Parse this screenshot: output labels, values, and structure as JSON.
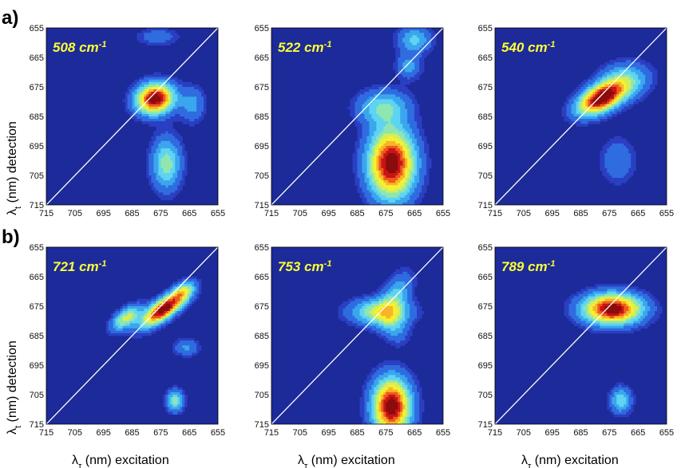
{
  "panel_labels": [
    "a)",
    "b)"
  ],
  "colors": {
    "background": "#1c2a9a",
    "levels": [
      "#2a3fc2",
      "#2f6ce0",
      "#3aa6ee",
      "#5fd4f2",
      "#8fe6b0",
      "#d4ee5a",
      "#f6f22e",
      "#f8b428",
      "#ee5a1e",
      "#c81414",
      "#8a0c0c"
    ],
    "diagonal": "#ffffff",
    "label_text": "#ffff33"
  },
  "axis": {
    "ticks": [
      715,
      705,
      695,
      685,
      675,
      665,
      655
    ],
    "y_ticks": [
      655,
      665,
      675,
      685,
      695,
      705,
      715
    ],
    "x_label": "λτ (nm) excitation",
    "x_label_main": "λ",
    "x_label_sub": "τ",
    "x_label_rest": " (nm) excitation",
    "y_label": "λt (nm) detection",
    "y_label_main": "λ",
    "y_label_sub": "t",
    "y_label_rest": " (nm) detection"
  },
  "chart_data": [
    {
      "type": "heatmap",
      "row": "a",
      "label": "508 cm⁻¹",
      "label_main": "508 cm",
      "label_sup": "-1",
      "xlabel": "",
      "ylabel": "λt (nm) detection",
      "xlim": [
        715,
        655
      ],
      "ylim": [
        655,
        715
      ],
      "peaks": [
        {
          "x": 677,
          "y": 679,
          "amplitude": 1.0,
          "sx": 4.5,
          "sy": 3.5,
          "rot": 10
        },
        {
          "x": 673,
          "y": 701,
          "amplitude": 0.42,
          "sx": 3.5,
          "sy": 6,
          "rot": 0
        },
        {
          "x": 664,
          "y": 681,
          "amplitude": 0.22,
          "sx": 3,
          "sy": 4,
          "rot": 0
        },
        {
          "x": 676,
          "y": 658,
          "amplitude": 0.15,
          "sx": 5,
          "sy": 2,
          "rot": 0
        }
      ]
    },
    {
      "type": "heatmap",
      "row": "a",
      "label": "522 cm⁻¹",
      "label_main": "522 cm",
      "label_sup": "-1",
      "xlabel": "",
      "ylabel": "",
      "xlim": [
        715,
        655
      ],
      "ylim": [
        655,
        715
      ],
      "peaks": [
        {
          "x": 673,
          "y": 701,
          "amplitude": 1.0,
          "sx": 5.5,
          "sy": 8,
          "rot": 0
        },
        {
          "x": 676,
          "y": 682,
          "amplitude": 0.35,
          "sx": 6,
          "sy": 4,
          "rot": 0
        },
        {
          "x": 665,
          "y": 659,
          "amplitude": 0.3,
          "sx": 4,
          "sy": 3,
          "rot": 0
        },
        {
          "x": 667,
          "y": 668,
          "amplitude": 0.22,
          "sx": 3,
          "sy": 3,
          "rot": 0
        }
      ]
    },
    {
      "type": "heatmap",
      "row": "a",
      "label": "540 cm⁻¹",
      "label_main": "540 cm",
      "label_sup": "-1",
      "xlabel": "",
      "ylabel": "",
      "xlim": [
        715,
        655
      ],
      "ylim": [
        655,
        715
      ],
      "peaks": [
        {
          "x": 678,
          "y": 679,
          "amplitude": 1.0,
          "sx": 6,
          "sy": 3,
          "rot": 25
        },
        {
          "x": 670,
          "y": 673,
          "amplitude": 0.35,
          "sx": 6,
          "sy": 4,
          "rot": 10
        },
        {
          "x": 672,
          "y": 700,
          "amplitude": 0.18,
          "sx": 4,
          "sy": 5,
          "rot": 0
        }
      ]
    },
    {
      "type": "heatmap",
      "row": "b",
      "label": "721 cm⁻¹",
      "label_main": "721 cm",
      "label_sup": "-1",
      "xlabel": "λτ (nm) excitation",
      "ylabel": "λt (nm) detection",
      "xlim": [
        715,
        655
      ],
      "ylim": [
        655,
        715
      ],
      "peaks": [
        {
          "x": 674,
          "y": 676,
          "amplitude": 1.0,
          "sx": 6,
          "sy": 2.2,
          "rot": 35
        },
        {
          "x": 687,
          "y": 679,
          "amplitude": 0.5,
          "sx": 4,
          "sy": 2,
          "rot": 35
        },
        {
          "x": 667,
          "y": 670,
          "amplitude": 0.35,
          "sx": 3,
          "sy": 2,
          "rot": 35
        },
        {
          "x": 670,
          "y": 707,
          "amplitude": 0.4,
          "sx": 2,
          "sy": 2.5,
          "rot": 0
        },
        {
          "x": 666,
          "y": 689,
          "amplitude": 0.2,
          "sx": 3,
          "sy": 2,
          "rot": 0
        }
      ]
    },
    {
      "type": "heatmap",
      "row": "b",
      "label": "753 cm⁻¹",
      "label_main": "753 cm",
      "label_sup": "-1",
      "xlabel": "λτ (nm) excitation",
      "ylabel": "",
      "xlim": [
        715,
        655
      ],
      "ylim": [
        655,
        715
      ],
      "peaks": [
        {
          "x": 673,
          "y": 709,
          "amplitude": 1.0,
          "sx": 4.5,
          "sy": 6.5,
          "rot": 0
        },
        {
          "x": 677,
          "y": 677,
          "amplitude": 0.48,
          "sx": 7,
          "sy": 3,
          "rot": 0
        },
        {
          "x": 672,
          "y": 672,
          "amplitude": 0.3,
          "sx": 3,
          "sy": 6,
          "rot": -30
        },
        {
          "x": 672,
          "y": 682,
          "amplitude": 0.22,
          "sx": 3,
          "sy": 4,
          "rot": 30
        }
      ]
    },
    {
      "type": "heatmap",
      "row": "b",
      "label": "789 cm⁻¹",
      "label_main": "789 cm",
      "label_sup": "-1",
      "xlabel": "λτ (nm) excitation",
      "ylabel": "",
      "xlim": [
        715,
        655
      ],
      "ylim": [
        655,
        715
      ],
      "peaks": [
        {
          "x": 674,
          "y": 676,
          "amplitude": 1.0,
          "sx": 7,
          "sy": 3.5,
          "rot": 0
        },
        {
          "x": 671,
          "y": 707,
          "amplitude": 0.35,
          "sx": 2.5,
          "sy": 3,
          "rot": 0
        }
      ]
    }
  ]
}
